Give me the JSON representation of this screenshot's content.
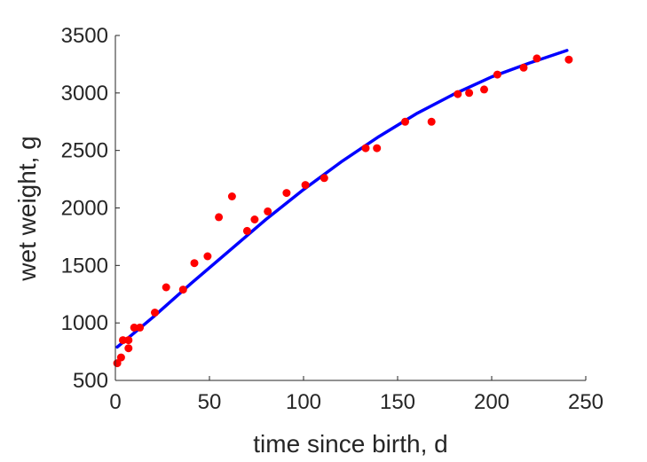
{
  "chart_data": {
    "type": "scatter",
    "title": "",
    "xlabel": "time since birth, d",
    "ylabel": "wet weight, g",
    "xlim": [
      0,
      250
    ],
    "ylim": [
      500,
      3500
    ],
    "xticks": [
      0,
      50,
      100,
      150,
      200,
      250
    ],
    "yticks": [
      500,
      1000,
      1500,
      2000,
      2500,
      3000,
      3500
    ],
    "grid": false,
    "legend": "none",
    "series": [
      {
        "kind": "points",
        "color": "#ff0000",
        "x": [
          1,
          3,
          4,
          7,
          7,
          10,
          13,
          21,
          27,
          36,
          42,
          49,
          55,
          62,
          70,
          74,
          81,
          91,
          101,
          111,
          133,
          139,
          154,
          168,
          182,
          188,
          196,
          203,
          217,
          224,
          241
        ],
        "y": [
          650,
          700,
          850,
          850,
          780,
          960,
          960,
          1090,
          1310,
          1290,
          1520,
          1580,
          1920,
          2100,
          1800,
          1900,
          1970,
          2130,
          2200,
          2260,
          2520,
          2520,
          2750,
          2750,
          2990,
          3000,
          3030,
          3160,
          3220,
          3300,
          3290
        ]
      },
      {
        "kind": "line",
        "color": "#0000ff",
        "x": [
          1,
          20,
          40,
          60,
          80,
          100,
          120,
          140,
          160,
          180,
          200,
          220,
          240
        ],
        "y": [
          790,
          1050,
          1340,
          1620,
          1900,
          2160,
          2400,
          2620,
          2820,
          2990,
          3140,
          3260,
          3370
        ]
      }
    ]
  }
}
